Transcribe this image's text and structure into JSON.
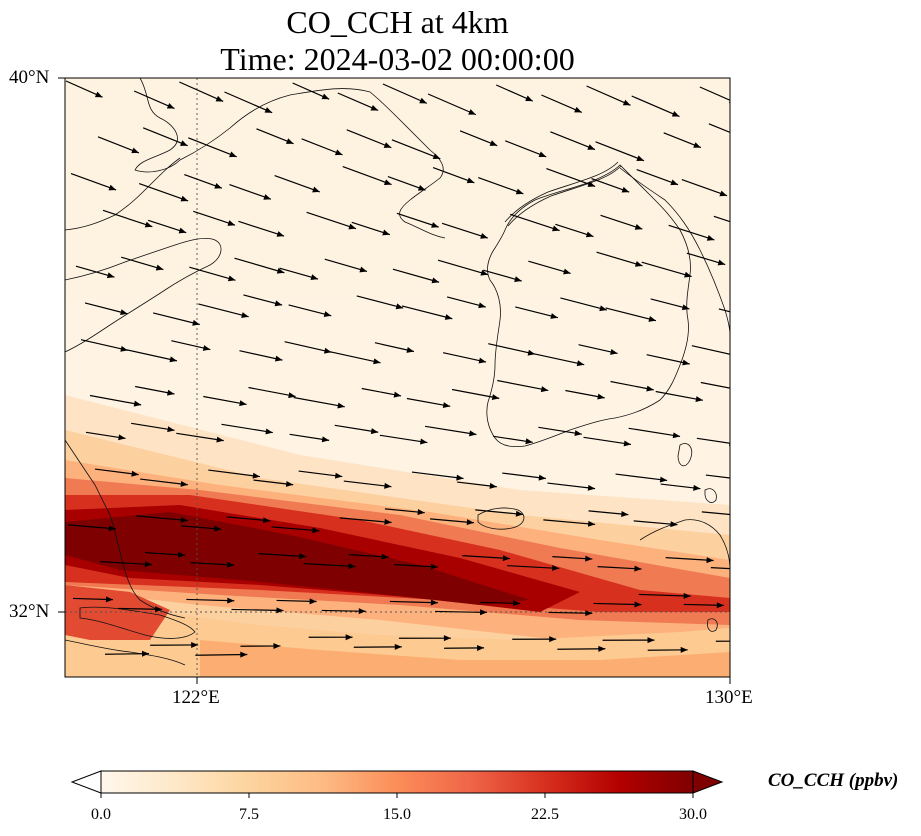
{
  "title": {
    "line1": "CO_CCH at 4km",
    "line2": "Time: 2024-03-02 00:00:00"
  },
  "axes": {
    "lat_labels": [
      "40°N",
      "32°N"
    ],
    "lon_labels": [
      "122°E",
      "130°E"
    ],
    "lat_range": [
      31,
      40
    ],
    "lon_range": [
      120,
      130
    ],
    "gridlines": {
      "lat": [
        32
      ],
      "lon": [
        122
      ],
      "style": "dotted"
    }
  },
  "colorbar": {
    "label": "CO_CCH (ppbv)",
    "ticks": [
      "0.0",
      "7.5",
      "15.0",
      "22.5",
      "30.0"
    ],
    "range": [
      0,
      30
    ],
    "extend": "both",
    "cmap": "OrRd",
    "colors": [
      "#fff7ec",
      "#fee8c8",
      "#fdd49e",
      "#fdbb84",
      "#fc8d59",
      "#ef6548",
      "#d7301f",
      "#b30000",
      "#7f0000"
    ]
  },
  "field": {
    "description_color_low": "#fff4e4",
    "description_color_high": "#7f0000"
  },
  "wind_vectors": true
}
